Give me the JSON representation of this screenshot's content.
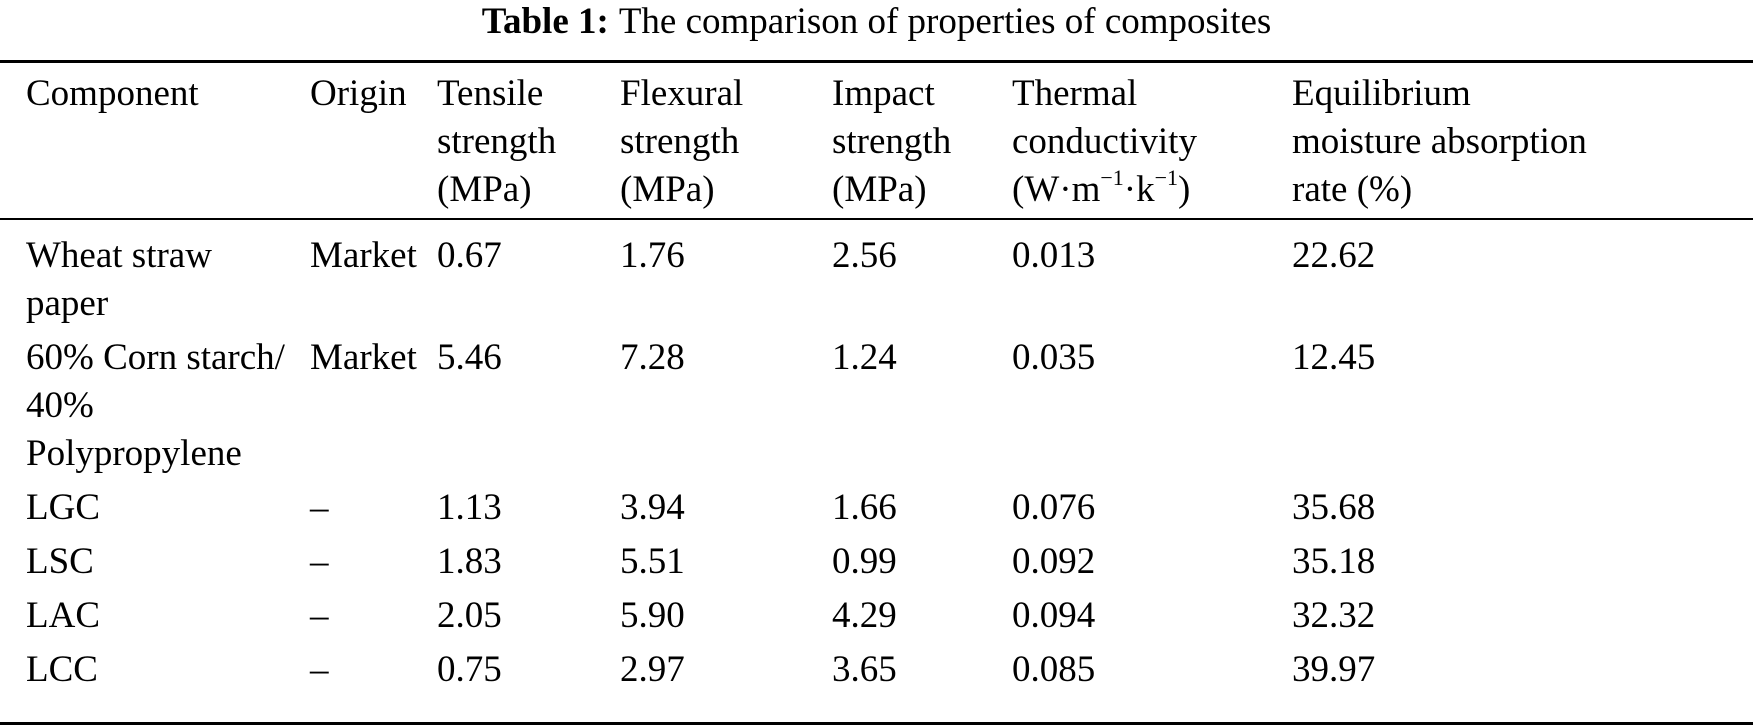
{
  "caption": {
    "label": "Table 1:",
    "text": "The comparison of properties of composites"
  },
  "columns": [
    {
      "lines": [
        "Component"
      ]
    },
    {
      "lines": [
        "Origin"
      ]
    },
    {
      "lines": [
        "Tensile",
        "strength",
        "(MPa)"
      ]
    },
    {
      "lines": [
        "Flexural",
        "strength",
        "(MPa)"
      ]
    },
    {
      "lines": [
        "Impact",
        "strength",
        "(MPa)"
      ]
    },
    {
      "lines": [
        "Thermal",
        "conductivity"
      ],
      "unit": {
        "base": "(W·m",
        "exp1": "−1",
        "mid": "·k",
        "exp2": "−1",
        "end": ")"
      }
    },
    {
      "lines": [
        "Equilibrium",
        "moisture absorption",
        "rate (%)"
      ]
    }
  ],
  "rows": [
    {
      "component": [
        "Wheat straw",
        "paper"
      ],
      "origin": "Market",
      "tensile": "0.67",
      "flexural": "1.76",
      "impact": "2.56",
      "thermal": "0.013",
      "moisture": "22.62"
    },
    {
      "component": [
        "60% Corn starch/",
        "40%",
        "Polypropylene"
      ],
      "origin": "Market",
      "tensile": "5.46",
      "flexural": "7.28",
      "impact": "1.24",
      "thermal": "0.035",
      "moisture": "12.45"
    },
    {
      "component": [
        "LGC"
      ],
      "origin": "–",
      "tensile": "1.13",
      "flexural": "3.94",
      "impact": "1.66",
      "thermal": "0.076",
      "moisture": "35.68"
    },
    {
      "component": [
        "LSC"
      ],
      "origin": "–",
      "tensile": "1.83",
      "flexural": "5.51",
      "impact": "0.99",
      "thermal": "0.092",
      "moisture": "35.18"
    },
    {
      "component": [
        "LAC"
      ],
      "origin": "–",
      "tensile": "2.05",
      "flexural": "5.90",
      "impact": "4.29",
      "thermal": "0.094",
      "moisture": "32.32"
    },
    {
      "component": [
        "LCC"
      ],
      "origin": "–",
      "tensile": "0.75",
      "flexural": "2.97",
      "impact": "3.65",
      "thermal": "0.085",
      "moisture": "39.97"
    }
  ]
}
